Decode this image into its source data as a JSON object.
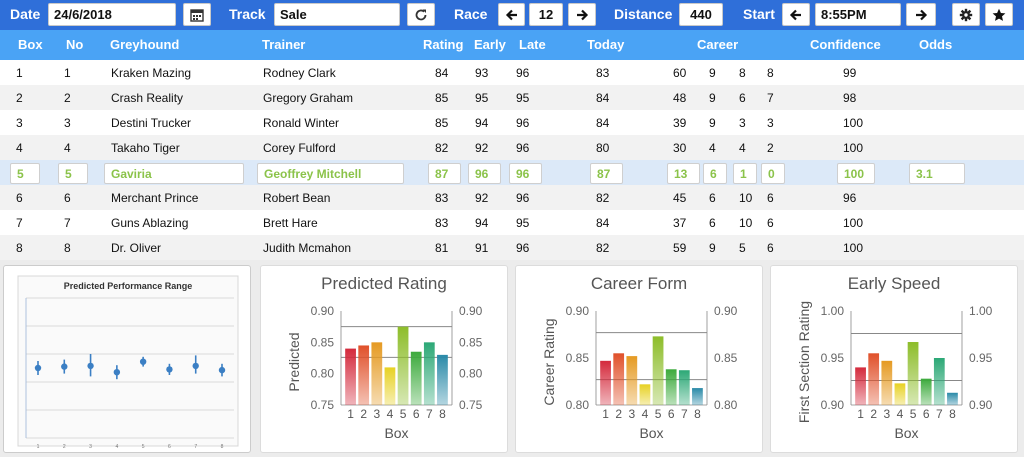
{
  "toolbar": {
    "date_label": "Date",
    "date_value": "24/6/2018",
    "track_label": "Track",
    "track_value": "Sale",
    "race_label": "Race",
    "race_value": "12",
    "distance_label": "Distance",
    "distance_value": "440",
    "start_label": "Start",
    "start_value": "8:55PM",
    "icons": [
      "calendar-icon",
      "refresh-icon",
      "arrow-left-icon",
      "arrow-right-icon",
      "gear-icon",
      "star-icon"
    ]
  },
  "table": {
    "headers": {
      "box": "Box",
      "no": "No",
      "greyhound": "Greyhound",
      "trainer": "Trainer",
      "rating": "Rating",
      "early": "Early",
      "late": "Late",
      "today": "Today",
      "career": "Career",
      "confidence": "Confidence",
      "odds": "Odds"
    },
    "rows": [
      {
        "box": "1",
        "no": "1",
        "greyhound": "Kraken Mazing",
        "trainer": "Rodney Clark",
        "rating": "84",
        "early": "93",
        "late": "96",
        "today": "83",
        "c1": "60",
        "c2": "9",
        "c3": "8",
        "c4": "8",
        "confidence": "99",
        "odds": ""
      },
      {
        "box": "2",
        "no": "2",
        "greyhound": "Crash Reality",
        "trainer": "Gregory Graham",
        "rating": "85",
        "early": "95",
        "late": "95",
        "today": "84",
        "c1": "48",
        "c2": "9",
        "c3": "6",
        "c4": "7",
        "confidence": "98",
        "odds": ""
      },
      {
        "box": "3",
        "no": "3",
        "greyhound": "Destini Trucker",
        "trainer": "Ronald Winter",
        "rating": "85",
        "early": "94",
        "late": "96",
        "today": "84",
        "c1": "39",
        "c2": "9",
        "c3": "3",
        "c4": "3",
        "confidence": "100",
        "odds": ""
      },
      {
        "box": "4",
        "no": "4",
        "greyhound": "Takaho Tiger",
        "trainer": "Corey Fulford",
        "rating": "82",
        "early": "92",
        "late": "96",
        "today": "80",
        "c1": "30",
        "c2": "4",
        "c3": "4",
        "c4": "2",
        "confidence": "100",
        "odds": ""
      },
      {
        "box": "5",
        "no": "5",
        "greyhound": "Gaviria",
        "trainer": "Geoffrey Mitchell",
        "rating": "87",
        "early": "96",
        "late": "96",
        "today": "87",
        "c1": "13",
        "c2": "6",
        "c3": "1",
        "c4": "0",
        "confidence": "100",
        "odds": "3.1"
      },
      {
        "box": "6",
        "no": "6",
        "greyhound": "Merchant Prince",
        "trainer": "Robert Bean",
        "rating": "83",
        "early": "92",
        "late": "96",
        "today": "82",
        "c1": "45",
        "c2": "6",
        "c3": "10",
        "c4": "6",
        "confidence": "96",
        "odds": ""
      },
      {
        "box": "7",
        "no": "7",
        "greyhound": "Guns Ablazing",
        "trainer": "Brett Hare",
        "rating": "83",
        "early": "94",
        "late": "95",
        "today": "84",
        "c1": "37",
        "c2": "6",
        "c3": "10",
        "c4": "6",
        "confidence": "100",
        "odds": ""
      },
      {
        "box": "8",
        "no": "8",
        "greyhound": "Dr. Oliver",
        "trainer": "Judith Mcmahon",
        "rating": "81",
        "early": "91",
        "late": "96",
        "today": "82",
        "c1": "59",
        "c2": "9",
        "c3": "5",
        "c4": "6",
        "confidence": "100",
        "odds": ""
      }
    ],
    "selected_row": 4,
    "colors": {
      "header_bg": "#4aa3f5",
      "toolbar_bg": "#2f6fd9",
      "selected_text": "#8bc34a",
      "selected_row_bg": "#dce9f8"
    }
  },
  "chart_data": [
    {
      "type": "scatter",
      "title": "Predicted Performance Range",
      "x": [
        1,
        2,
        3,
        4,
        5,
        6,
        7,
        8
      ],
      "y": [
        0.5,
        0.51,
        0.515,
        0.47,
        0.545,
        0.49,
        0.515,
        0.485
      ],
      "error_low": [
        0.45,
        0.46,
        0.44,
        0.42,
        0.51,
        0.45,
        0.46,
        0.44
      ],
      "error_high": [
        0.55,
        0.56,
        0.6,
        0.52,
        0.58,
        0.53,
        0.59,
        0.53
      ],
      "ylim": [
        0,
        1
      ],
      "xticklabels": [
        "1",
        "2",
        "3",
        "4",
        "5",
        "6",
        "7",
        "8"
      ],
      "color": "#3b7fc4"
    },
    {
      "type": "bar",
      "title": "Predicted Rating",
      "categories": [
        "1",
        "2",
        "3",
        "4",
        "5",
        "6",
        "7",
        "8"
      ],
      "values": [
        0.84,
        0.845,
        0.85,
        0.81,
        0.875,
        0.835,
        0.85,
        0.83
      ],
      "reference_lines": [
        0.875,
        0.826
      ],
      "ylim": [
        0.75,
        0.9
      ],
      "yticks": [
        "0.75",
        "0.80",
        "0.85",
        "0.90"
      ],
      "xlabel": "Box",
      "ylabel": "Predicted",
      "bar_colors": [
        "#d42a3c",
        "#e0502a",
        "#e59a22",
        "#e7d123",
        "#8dbd2a",
        "#3caa3c",
        "#2ca876",
        "#2a8aa8"
      ]
    },
    {
      "type": "bar",
      "title": "Career Form",
      "categories": [
        "1",
        "2",
        "3",
        "4",
        "5",
        "6",
        "7",
        "8"
      ],
      "values": [
        0.847,
        0.855,
        0.852,
        0.822,
        0.873,
        0.838,
        0.837,
        0.818
      ],
      "reference_lines": [
        0.877,
        0.827
      ],
      "ylim": [
        0.8,
        0.9
      ],
      "yticks": [
        "0.80",
        "0.85",
        "0.90"
      ],
      "xlabel": "Box",
      "ylabel": "Career Rating",
      "bar_colors": [
        "#d42a3c",
        "#e0502a",
        "#e59a22",
        "#e7d123",
        "#8dbd2a",
        "#3caa3c",
        "#2ca876",
        "#2a8aa8"
      ]
    },
    {
      "type": "bar",
      "title": "Early Speed",
      "categories": [
        "1",
        "2",
        "3",
        "4",
        "5",
        "6",
        "7",
        "8"
      ],
      "values": [
        0.94,
        0.955,
        0.947,
        0.923,
        0.967,
        0.928,
        0.95,
        0.913
      ],
      "reference_lines": [
        0.976,
        0.926
      ],
      "ylim": [
        0.9,
        1.0
      ],
      "yticks": [
        "0.90",
        "0.95",
        "1.00"
      ],
      "xlabel": "Box",
      "ylabel": "First Section Rating",
      "bar_colors": [
        "#d42a3c",
        "#e0502a",
        "#e59a22",
        "#e7d123",
        "#8dbd2a",
        "#3caa3c",
        "#2ca876",
        "#2a8aa8"
      ]
    }
  ]
}
